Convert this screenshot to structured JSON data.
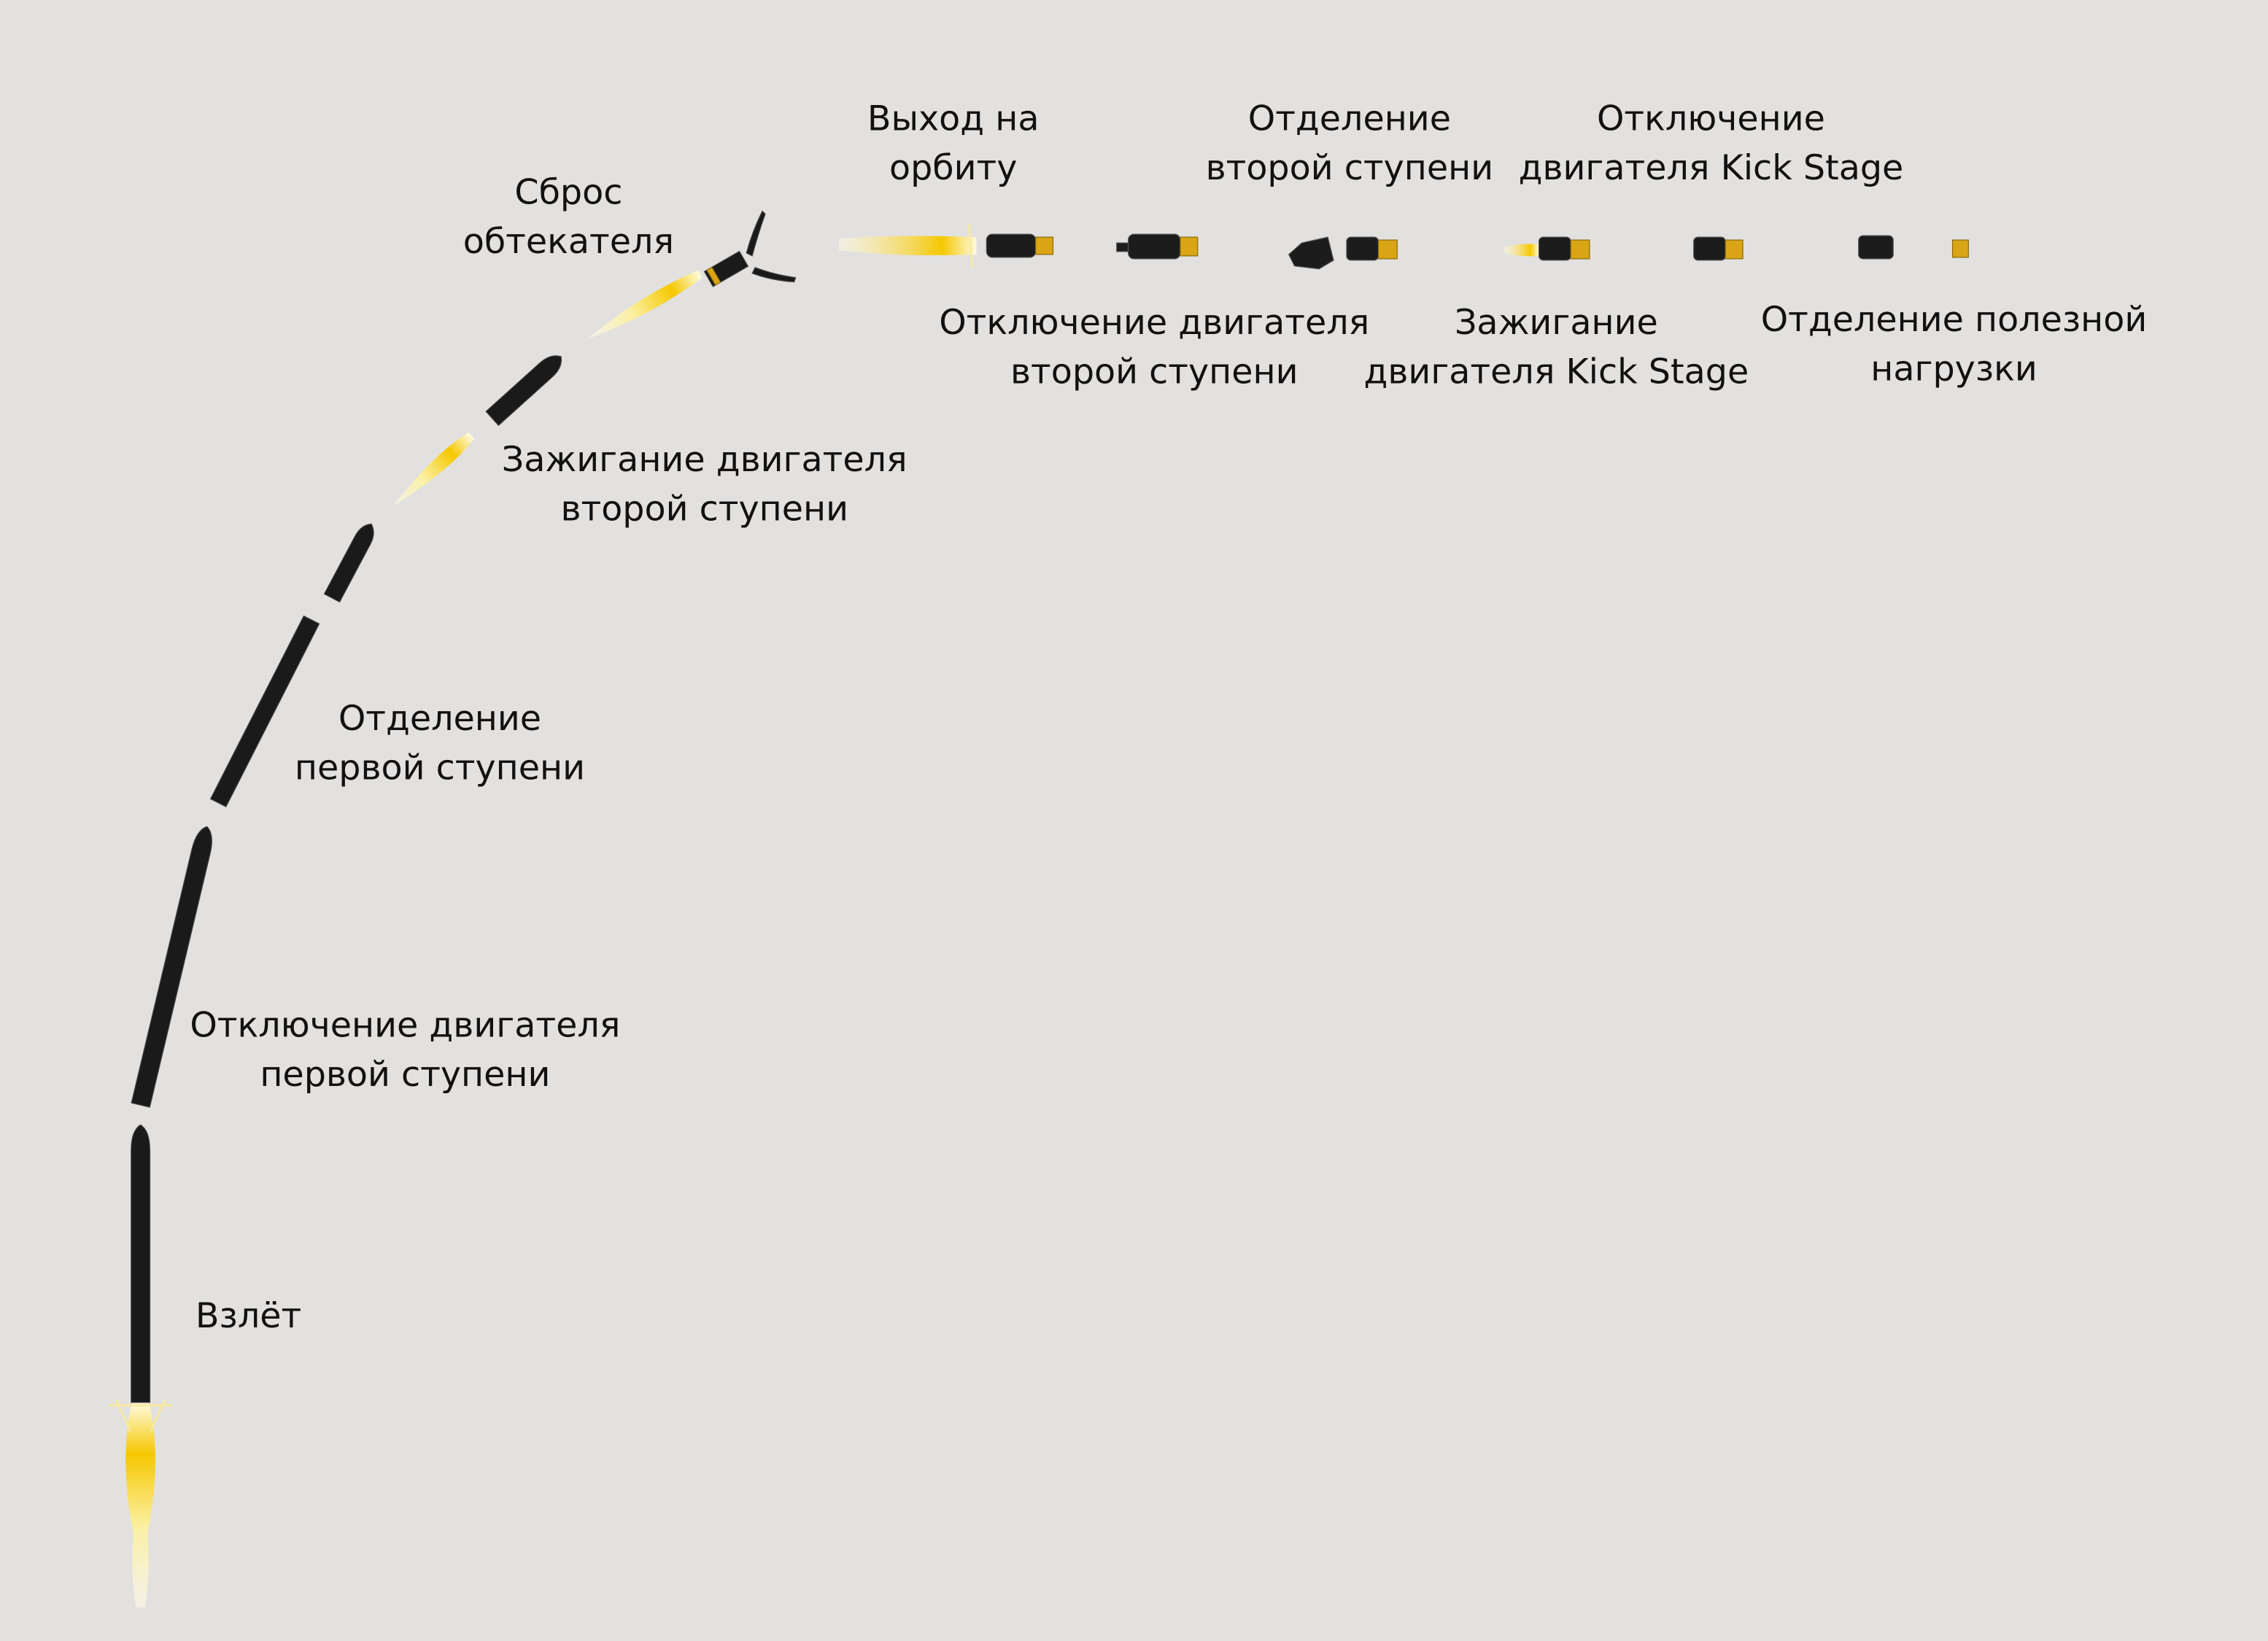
{
  "diagram": {
    "colors": {
      "background": "#e2e1df",
      "rocket": "#1a1a1a",
      "flame": "#f5d21e",
      "kick_stage": "#d9a514"
    },
    "stages": [
      {
        "id": "liftoff",
        "lines": [
          "Взлёт"
        ]
      },
      {
        "id": "meco",
        "lines": [
          "Отключение двигателя",
          "первой ступени"
        ]
      },
      {
        "id": "stage-separation",
        "lines": [
          "Отделение",
          "первой ступени"
        ]
      },
      {
        "id": "second-stage-ignition",
        "lines": [
          "Зажигание двигателя",
          "второй ступени"
        ]
      },
      {
        "id": "fairing-separation",
        "lines": [
          "Сброс",
          "обтекателя"
        ]
      },
      {
        "id": "orbit-insertion",
        "lines": [
          "Выход на",
          "орбиту"
        ]
      },
      {
        "id": "seco",
        "lines": [
          "Отключение двигателя",
          "второй ступени"
        ]
      },
      {
        "id": "second-stage-separation",
        "lines": [
          "Отделение",
          "второй ступени"
        ]
      },
      {
        "id": "kick-stage-ignition",
        "lines": [
          "Зажигание",
          "двигателя Kick Stage"
        ]
      },
      {
        "id": "kick-stage-cutoff",
        "lines": [
          "Отключение",
          "двигателя Kick Stage"
        ]
      },
      {
        "id": "payload-separation",
        "lines": [
          "Отделение полезной",
          "нагрузки"
        ]
      }
    ]
  }
}
